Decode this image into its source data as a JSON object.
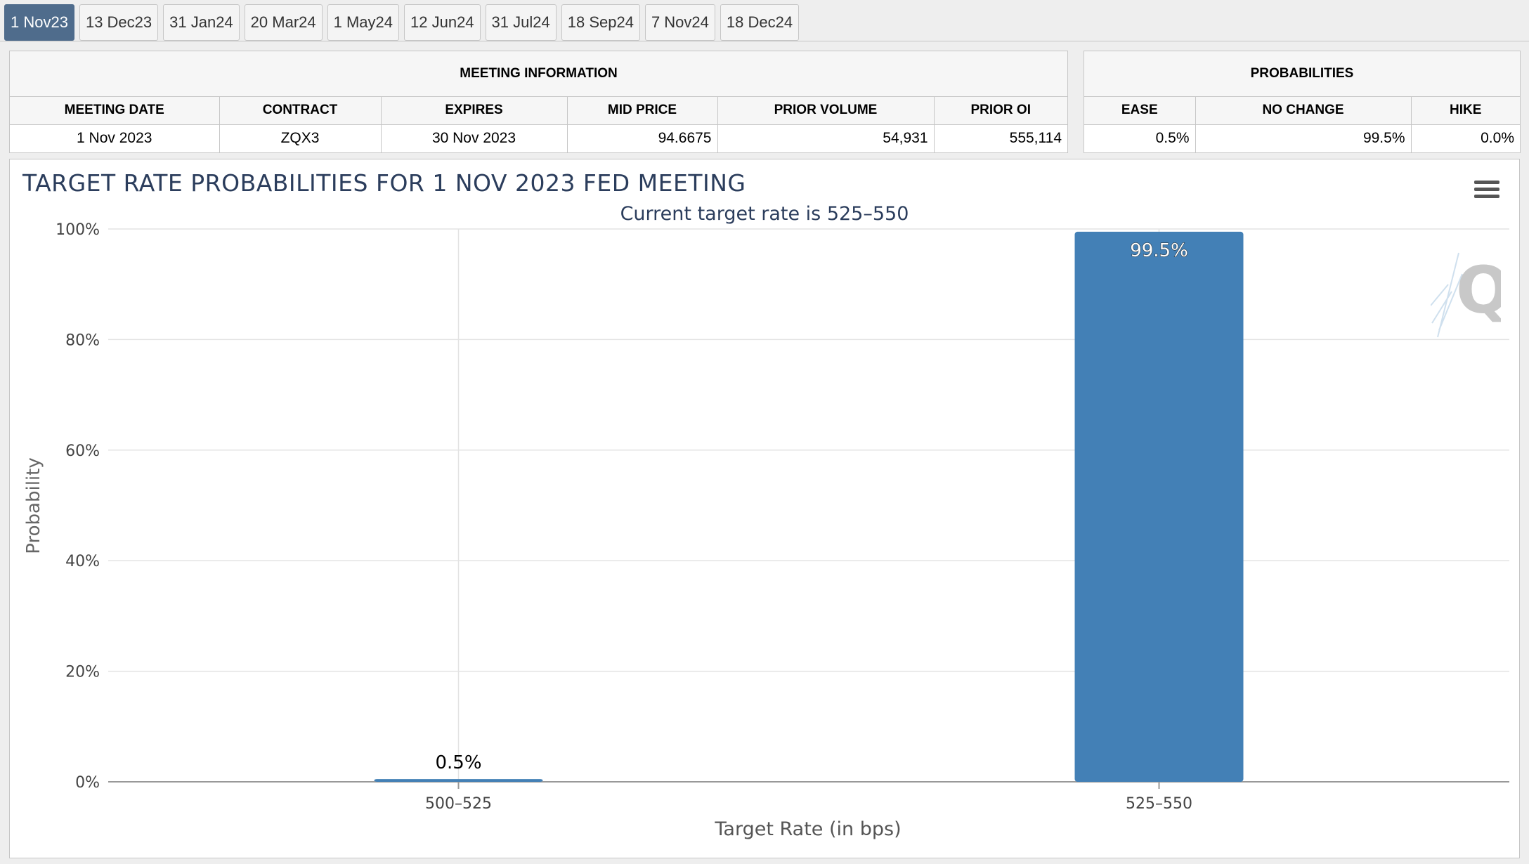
{
  "tabs": [
    {
      "label": "1 Nov23",
      "active": true
    },
    {
      "label": "13 Dec23"
    },
    {
      "label": "31 Jan24"
    },
    {
      "label": "20 Mar24"
    },
    {
      "label": "1 May24"
    },
    {
      "label": "12 Jun24"
    },
    {
      "label": "31 Jul24"
    },
    {
      "label": "18 Sep24"
    },
    {
      "label": "7 Nov24"
    },
    {
      "label": "18 Dec24"
    }
  ],
  "meeting_info": {
    "heading": "MEETING INFORMATION",
    "columns": [
      "MEETING DATE",
      "CONTRACT",
      "EXPIRES",
      "MID PRICE",
      "PRIOR VOLUME",
      "PRIOR OI"
    ],
    "row": {
      "meeting_date": "1 Nov 2023",
      "contract": "ZQX3",
      "expires": "30 Nov 2023",
      "mid_price": "94.6675",
      "prior_volume": "54,931",
      "prior_oi": "555,114"
    }
  },
  "probabilities": {
    "heading": "PROBABILITIES",
    "columns": [
      "EASE",
      "NO CHANGE",
      "HIKE"
    ],
    "row": {
      "ease": "0.5%",
      "no_change": "99.5%",
      "hike": "0.0%"
    }
  },
  "chart_data": {
    "type": "bar",
    "title": "TARGET RATE PROBABILITIES FOR 1 NOV 2023 FED MEETING",
    "subtitle": "Current target rate is 525–550",
    "categories": [
      "500–525",
      "525–550"
    ],
    "values": [
      0.5,
      99.5
    ],
    "data_labels": [
      "0.5%",
      "99.5%"
    ],
    "xlabel": "Target Rate (in bps)",
    "ylabel": "Probability",
    "ylim": [
      0,
      100
    ],
    "yticks": [
      "0%",
      "20%",
      "40%",
      "60%",
      "80%",
      "100%"
    ],
    "grid": true,
    "bar_color": "#4380b6"
  }
}
